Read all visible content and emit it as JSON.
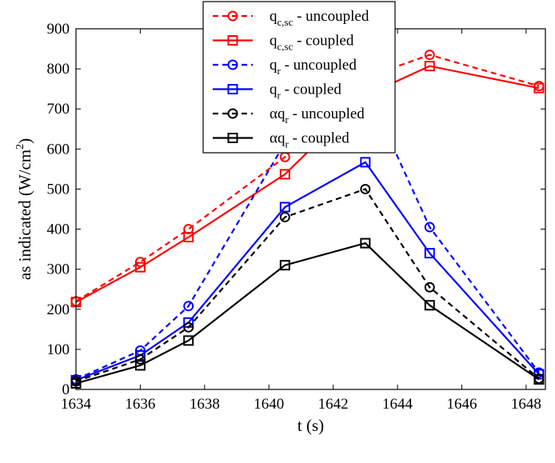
{
  "chart_data": {
    "type": "line",
    "xlabel": "t (s)",
    "ylabel_main": "as indicated (W/cm",
    "ylabel_sup": "2",
    "ylabel_close": ")",
    "xlim": [
      1634,
      1648.6
    ],
    "ylim": [
      0,
      900
    ],
    "xticks": [
      "1634",
      "1636",
      "1638",
      "1640",
      "1642",
      "1644",
      "1646",
      "1648"
    ],
    "yticks": [
      "0",
      "100",
      "200",
      "300",
      "400",
      "500",
      "600",
      "700",
      "800",
      "900"
    ],
    "grid": false,
    "legend_position": "top-left",
    "x": [
      1634,
      1636,
      1637.5,
      1640.5,
      1643,
      1645,
      1648.4
    ],
    "series": [
      {
        "name_prefix": "q",
        "name_sub": "c,sc",
        "name_suffix": " - uncoupled",
        "color": "#ff0000",
        "dashed": true,
        "marker": "circle",
        "values": [
          220,
          318,
          400,
          580,
          778,
          835,
          757
        ]
      },
      {
        "name_prefix": "q",
        "name_sub": "c,sc",
        "name_suffix": " - coupled",
        "color": "#ff0000",
        "dashed": false,
        "marker": "square",
        "values": [
          218,
          305,
          380,
          537,
          733,
          807,
          752
        ]
      },
      {
        "name_prefix": "q",
        "name_sub": "r",
        "name_suffix": " - uncoupled",
        "color": "#0000ff",
        "dashed": true,
        "marker": "circle",
        "values": [
          25,
          97,
          208,
          615,
          757,
          405,
          42
        ]
      },
      {
        "name_prefix": "q",
        "name_sub": "r",
        "name_suffix": " - coupled",
        "color": "#0000ff",
        "dashed": false,
        "marker": "square",
        "values": [
          23,
          85,
          167,
          455,
          567,
          340,
          38
        ]
      },
      {
        "name_prefix": "αq",
        "name_sub": "r",
        "name_suffix": " - uncoupled",
        "color": "#000000",
        "dashed": true,
        "marker": "circle",
        "values": [
          20,
          75,
          155,
          430,
          500,
          255,
          27
        ]
      },
      {
        "name_prefix": "αq",
        "name_sub": "r",
        "name_suffix": " - coupled",
        "color": "#000000",
        "dashed": false,
        "marker": "square",
        "values": [
          15,
          60,
          122,
          310,
          365,
          210,
          25
        ]
      }
    ]
  }
}
